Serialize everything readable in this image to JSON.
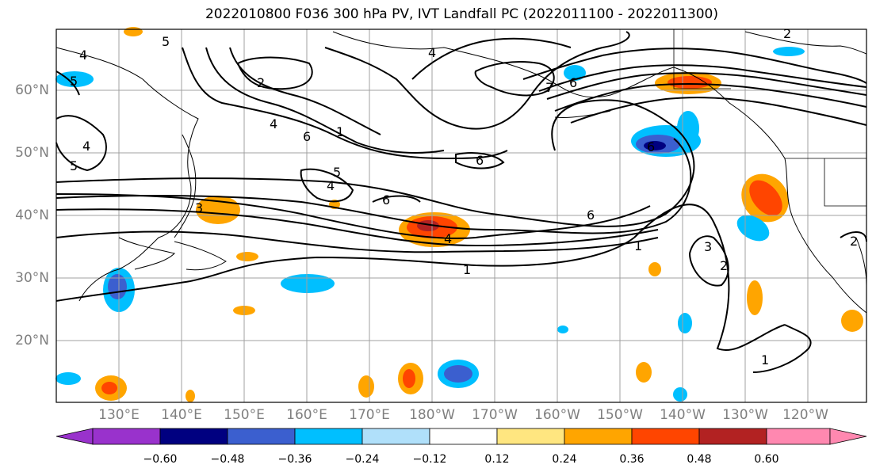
{
  "title": "2022010800 F036 300 hPa PV, IVT Landfall PC (2022011100 - 2022011300)",
  "lat_labels": [
    "60°N",
    "50°N",
    "40°N",
    "30°N",
    "20°N"
  ],
  "lon_labels": [
    "130°E",
    "140°E",
    "150°E",
    "160°E",
    "170°E",
    "180°W",
    "170°W",
    "160°W",
    "150°W",
    "140°W",
    "130°W",
    "120°W"
  ],
  "colorbar": {
    "tick_labels": [
      "−0.60",
      "−0.48",
      "−0.36",
      "−0.24",
      "−0.12",
      "0.12",
      "0.24",
      "0.36",
      "0.48",
      "0.60"
    ],
    "colors": [
      "#9932cc",
      "#000080",
      "#3b5fcf",
      "#00bfff",
      "#b0e0fa",
      "#ffffff",
      "#ffe680",
      "#ffa500",
      "#ff4500",
      "#b22222",
      "#ff88b0"
    ]
  },
  "contour_labels": [
    "5",
    "4",
    "2",
    "4",
    "6",
    "1",
    "5",
    "4",
    "6",
    "5",
    "5",
    "3",
    "4",
    "6",
    "1",
    "4",
    "6",
    "6",
    "1",
    "3",
    "2",
    "1",
    "2",
    "2",
    "7",
    "6",
    "4"
  ]
}
